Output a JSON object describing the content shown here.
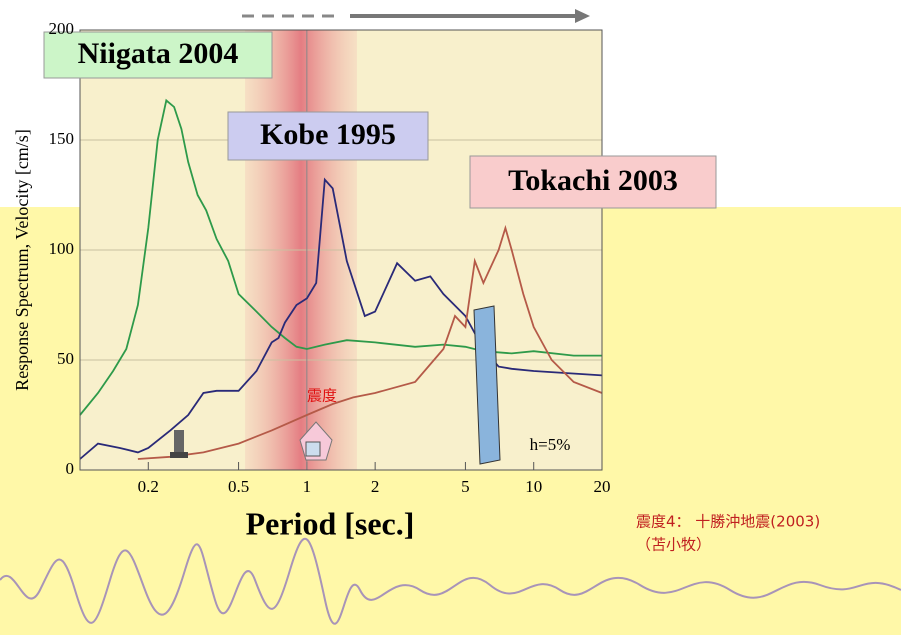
{
  "chart_data": {
    "type": "line",
    "y_label": "Response Spectrum, Velocity [cm/s]",
    "x_label": "Period [sec.]",
    "damping": "h=5%",
    "intensity_label": "震度",
    "caption": "震度4： 十勝沖地震(2003)",
    "caption_place": "（苫小牧）",
    "xlim": [
      0.1,
      20
    ],
    "ylim": [
      0,
      200
    ],
    "log_x": true,
    "xticks": [
      0.2,
      0.5,
      1,
      2,
      5,
      10,
      20
    ],
    "yticks": [
      0,
      50,
      100,
      150,
      200
    ],
    "series": [
      {
        "name": "Niigata 2004",
        "color": "#2e9a4a",
        "x": [
          0.1,
          0.12,
          0.14,
          0.16,
          0.18,
          0.2,
          0.22,
          0.24,
          0.26,
          0.28,
          0.3,
          0.33,
          0.36,
          0.4,
          0.45,
          0.5,
          0.6,
          0.7,
          0.8,
          0.9,
          1.0,
          1.2,
          1.5,
          2,
          3,
          4,
          5,
          6,
          8,
          10,
          15,
          20
        ],
        "values": [
          25,
          35,
          45,
          55,
          75,
          110,
          150,
          168,
          165,
          155,
          140,
          125,
          118,
          105,
          95,
          80,
          72,
          65,
          60,
          56,
          55,
          57,
          59,
          58,
          56,
          57,
          56,
          54,
          53,
          54,
          52,
          52
        ]
      },
      {
        "name": "Kobe 1995",
        "color": "#2a2a78",
        "x": [
          0.1,
          0.12,
          0.15,
          0.18,
          0.2,
          0.25,
          0.3,
          0.35,
          0.4,
          0.5,
          0.6,
          0.7,
          0.75,
          0.8,
          0.9,
          1.0,
          1.1,
          1.2,
          1.3,
          1.5,
          1.8,
          2.0,
          2.5,
          3,
          3.5,
          4,
          5,
          6,
          7,
          8,
          10,
          20
        ],
        "values": [
          5,
          12,
          10,
          8,
          10,
          18,
          25,
          35,
          36,
          36,
          45,
          58,
          60,
          67,
          75,
          78,
          85,
          132,
          128,
          95,
          70,
          72,
          94,
          86,
          88,
          80,
          70,
          55,
          47,
          46,
          45,
          43
        ]
      },
      {
        "name": "Tokachi 2003",
        "color": "#b55a48",
        "x": [
          0.18,
          0.25,
          0.35,
          0.5,
          0.7,
          1.0,
          1.3,
          1.6,
          2,
          3,
          4,
          4.5,
          5,
          5.5,
          6,
          7,
          7.5,
          8,
          9,
          10,
          12,
          15,
          20
        ],
        "values": [
          5,
          6,
          8,
          12,
          18,
          25,
          30,
          33,
          35,
          40,
          55,
          70,
          65,
          95,
          85,
          100,
          110,
          100,
          80,
          65,
          50,
          40,
          35
        ]
      }
    ]
  }
}
